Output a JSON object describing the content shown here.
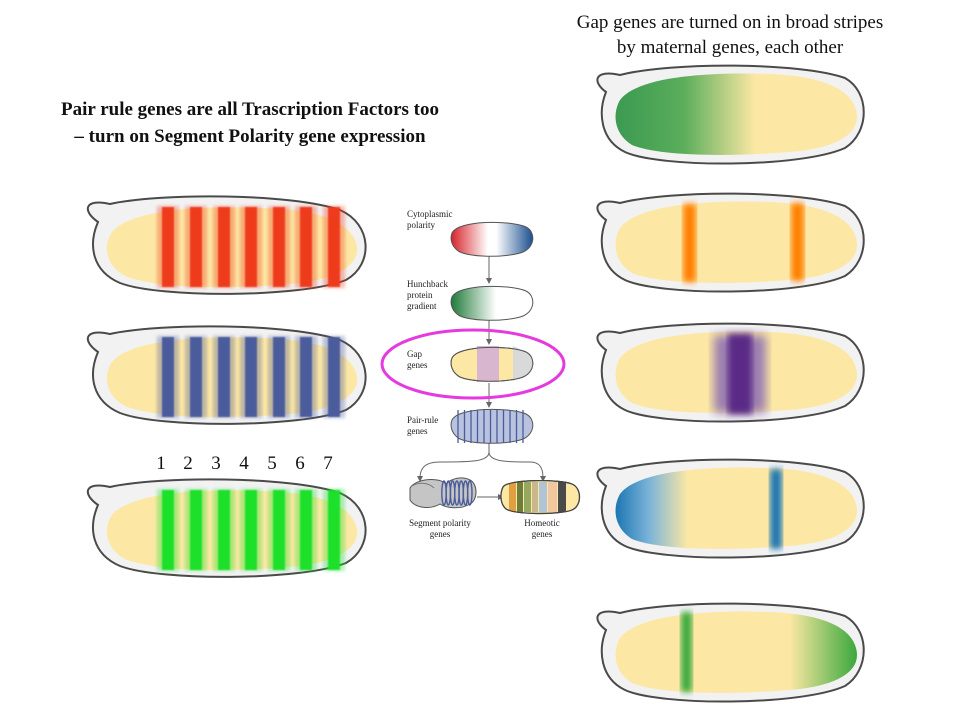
{
  "captions": {
    "gap_line1": "Gap genes are turned on in broad stripes",
    "gap_line2": "by maternal genes, each other",
    "pair_line1": "Pair rule genes are all Trascription Factors too",
    "pair_line2": "– turn on Segment Polarity gene expression"
  },
  "stripe_numbers": [
    "1",
    "2",
    "3",
    "4",
    "5",
    "6",
    "7"
  ],
  "flowchart": {
    "steps": [
      {
        "label_lines": [
          "Cytoplasmic",
          "polarity"
        ]
      },
      {
        "label_lines": [
          "Hunchback",
          "protein",
          "gradient"
        ]
      },
      {
        "label_lines": [
          "Gap",
          "genes"
        ]
      },
      {
        "label_lines": [
          "Pair-rule",
          "genes"
        ]
      }
    ],
    "branch_left_lines": [
      "Segment polarity",
      "genes"
    ],
    "branch_right_lines": [
      "Homeotic",
      "genes"
    ]
  },
  "colors": {
    "embryo_fill": "#fce8a4",
    "pair_red": "#ee3a1a",
    "pair_blue": "#4b5c9c",
    "pair_green": "#1ee02a",
    "gap_green": "#3c9a52",
    "gap_orange": "#ff7f00",
    "gap_purple": "#5a2a86",
    "gap_blue": "#1c76b4",
    "gap_green2": "#3aa83c",
    "highlight_ring": "#e43ae0"
  }
}
